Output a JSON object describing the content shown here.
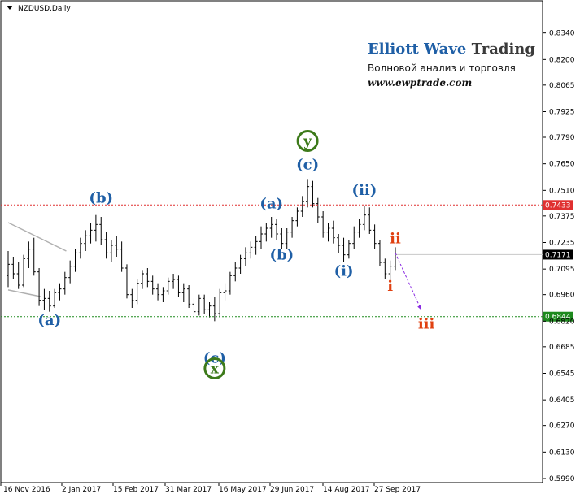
{
  "chart_data": {
    "type": "candlestick",
    "title": "NZDUSD,Daily",
    "symbol": "NZDUSD",
    "timeframe": "Daily",
    "ylim": [
      0.599,
      0.842
    ],
    "y_ticks": [
      "0.8340",
      "0.8200",
      "0.8065",
      "0.7925",
      "0.7790",
      "0.7650",
      "0.7510",
      "0.7375",
      "0.7235",
      "0.7095",
      "0.6960",
      "0.6820",
      "0.6685",
      "0.6545",
      "0.6405",
      "0.6270",
      "0.6130",
      "0.5990"
    ],
    "x_ticks": [
      "16 Nov 2016",
      "2 Jan 2017",
      "15 Feb 2017",
      "31 Mar 2017",
      "16 May 2017",
      "29 Jun 2017",
      "14 Aug 2017",
      "27 Sep 2017"
    ],
    "horizontal_lines": [
      {
        "value": 0.7433,
        "label": "0.7433",
        "color": "#e03030",
        "style": "dotted"
      },
      {
        "value": 0.6844,
        "label": "0.6844",
        "color": "#1e8a1e",
        "style": "dotted"
      }
    ],
    "current_price": {
      "value": 0.7171,
      "label": "0.7171"
    },
    "wave_labels": [
      {
        "text": "(a)",
        "color": "#1f5fa6",
        "bar": 8,
        "price": 0.68
      },
      {
        "text": "(b)",
        "color": "#1f5fa6",
        "bar": 18,
        "price": 0.7445
      },
      {
        "text": "(c)",
        "color": "#1f5fa6",
        "bar": 40,
        "price": 0.66
      },
      {
        "text": "x",
        "color": "#3d7a1a",
        "bar": 40,
        "price": 0.6545,
        "circled": true
      },
      {
        "text": "(a)",
        "color": "#1f5fa6",
        "bar": 51,
        "price": 0.7415
      },
      {
        "text": "(b)",
        "color": "#1f5fa6",
        "bar": 53,
        "price": 0.7145
      },
      {
        "text": "(c)",
        "color": "#1f5fa6",
        "bar": 58,
        "price": 0.762
      },
      {
        "text": "y",
        "color": "#3d7a1a",
        "bar": 58,
        "price": 0.7745,
        "circled": true
      },
      {
        "text": "(i)",
        "color": "#1f5fa6",
        "bar": 65,
        "price": 0.706
      },
      {
        "text": "(ii)",
        "color": "#1f5fa6",
        "bar": 69,
        "price": 0.7485
      },
      {
        "text": "i",
        "color": "#e04010",
        "bar": 74,
        "price": 0.698
      },
      {
        "text": "ii",
        "color": "#e04010",
        "bar": 75,
        "price": 0.723
      },
      {
        "text": "iii",
        "color": "#e04010",
        "bar": 81,
        "price": 0.678
      }
    ],
    "projection": {
      "from_bar": 75,
      "from_price": 0.718,
      "to_bar": 80,
      "to_price": 0.688,
      "color": "#8a2be2"
    },
    "channel_lines": [
      {
        "from_bar": 0,
        "from_price": 0.734,
        "to_bar": 10,
        "to_price": 0.719
      },
      {
        "from_bar": 0,
        "from_price": 0.6985,
        "to_bar": 5,
        "to_price": 0.695
      }
    ],
    "bars": [
      [
        0.706,
        0.719,
        0.7,
        0.712
      ],
      [
        0.712,
        0.716,
        0.704,
        0.707
      ],
      [
        0.707,
        0.713,
        0.699,
        0.701
      ],
      [
        0.701,
        0.717,
        0.7,
        0.715
      ],
      [
        0.715,
        0.724,
        0.71,
        0.72
      ],
      [
        0.72,
        0.726,
        0.706,
        0.708
      ],
      [
        0.708,
        0.71,
        0.69,
        0.693
      ],
      [
        0.693,
        0.699,
        0.688,
        0.694
      ],
      [
        0.694,
        0.698,
        0.687,
        0.69
      ],
      [
        0.69,
        0.699,
        0.689,
        0.697
      ],
      [
        0.697,
        0.702,
        0.693,
        0.699
      ],
      [
        0.699,
        0.708,
        0.696,
        0.705
      ],
      [
        0.705,
        0.714,
        0.702,
        0.711
      ],
      [
        0.711,
        0.72,
        0.708,
        0.718
      ],
      [
        0.718,
        0.726,
        0.715,
        0.723
      ],
      [
        0.723,
        0.73,
        0.719,
        0.727
      ],
      [
        0.727,
        0.734,
        0.723,
        0.73
      ],
      [
        0.73,
        0.738,
        0.724,
        0.733
      ],
      [
        0.733,
        0.737,
        0.722,
        0.725
      ],
      [
        0.725,
        0.729,
        0.715,
        0.718
      ],
      [
        0.718,
        0.725,
        0.713,
        0.722
      ],
      [
        0.722,
        0.727,
        0.716,
        0.72
      ],
      [
        0.72,
        0.724,
        0.708,
        0.71
      ],
      [
        0.71,
        0.712,
        0.694,
        0.696
      ],
      [
        0.696,
        0.699,
        0.689,
        0.693
      ],
      [
        0.693,
        0.704,
        0.691,
        0.702
      ],
      [
        0.702,
        0.709,
        0.699,
        0.707
      ],
      [
        0.707,
        0.71,
        0.7,
        0.703
      ],
      [
        0.703,
        0.706,
        0.696,
        0.699
      ],
      [
        0.699,
        0.702,
        0.693,
        0.696
      ],
      [
        0.696,
        0.7,
        0.692,
        0.698
      ],
      [
        0.698,
        0.705,
        0.696,
        0.703
      ],
      [
        0.703,
        0.707,
        0.699,
        0.704
      ],
      [
        0.704,
        0.706,
        0.695,
        0.697
      ],
      [
        0.697,
        0.702,
        0.692,
        0.699
      ],
      [
        0.699,
        0.701,
        0.689,
        0.691
      ],
      [
        0.691,
        0.694,
        0.685,
        0.687
      ],
      [
        0.687,
        0.696,
        0.685,
        0.694
      ],
      [
        0.694,
        0.696,
        0.686,
        0.688
      ],
      [
        0.688,
        0.692,
        0.684,
        0.69
      ],
      [
        0.69,
        0.695,
        0.682,
        0.686
      ],
      [
        0.686,
        0.699,
        0.684,
        0.697
      ],
      [
        0.697,
        0.702,
        0.693,
        0.698
      ],
      [
        0.698,
        0.708,
        0.696,
        0.706
      ],
      [
        0.706,
        0.713,
        0.703,
        0.71
      ],
      [
        0.71,
        0.717,
        0.707,
        0.715
      ],
      [
        0.715,
        0.721,
        0.711,
        0.718
      ],
      [
        0.718,
        0.724,
        0.715,
        0.721
      ],
      [
        0.721,
        0.727,
        0.717,
        0.724
      ],
      [
        0.724,
        0.732,
        0.72,
        0.728
      ],
      [
        0.728,
        0.734,
        0.724,
        0.731
      ],
      [
        0.731,
        0.737,
        0.726,
        0.733
      ],
      [
        0.733,
        0.736,
        0.725,
        0.728
      ],
      [
        0.728,
        0.731,
        0.72,
        0.723
      ],
      [
        0.723,
        0.731,
        0.72,
        0.729
      ],
      [
        0.729,
        0.737,
        0.726,
        0.735
      ],
      [
        0.735,
        0.742,
        0.732,
        0.74
      ],
      [
        0.74,
        0.748,
        0.737,
        0.745
      ],
      [
        0.745,
        0.757,
        0.742,
        0.753
      ],
      [
        0.753,
        0.756,
        0.742,
        0.744
      ],
      [
        0.744,
        0.747,
        0.734,
        0.737
      ],
      [
        0.737,
        0.74,
        0.726,
        0.729
      ],
      [
        0.729,
        0.734,
        0.724,
        0.731
      ],
      [
        0.731,
        0.735,
        0.723,
        0.726
      ],
      [
        0.726,
        0.728,
        0.718,
        0.722
      ],
      [
        0.722,
        0.726,
        0.713,
        0.717
      ],
      [
        0.717,
        0.725,
        0.715,
        0.723
      ],
      [
        0.723,
        0.732,
        0.72,
        0.729
      ],
      [
        0.729,
        0.736,
        0.726,
        0.733
      ],
      [
        0.733,
        0.743,
        0.73,
        0.738
      ],
      [
        0.738,
        0.742,
        0.728,
        0.73
      ],
      [
        0.73,
        0.733,
        0.72,
        0.723
      ],
      [
        0.723,
        0.725,
        0.711,
        0.713
      ],
      [
        0.713,
        0.715,
        0.704,
        0.707
      ],
      [
        0.707,
        0.714,
        0.702,
        0.711
      ],
      [
        0.711,
        0.721,
        0.709,
        0.7171
      ]
    ]
  }
}
